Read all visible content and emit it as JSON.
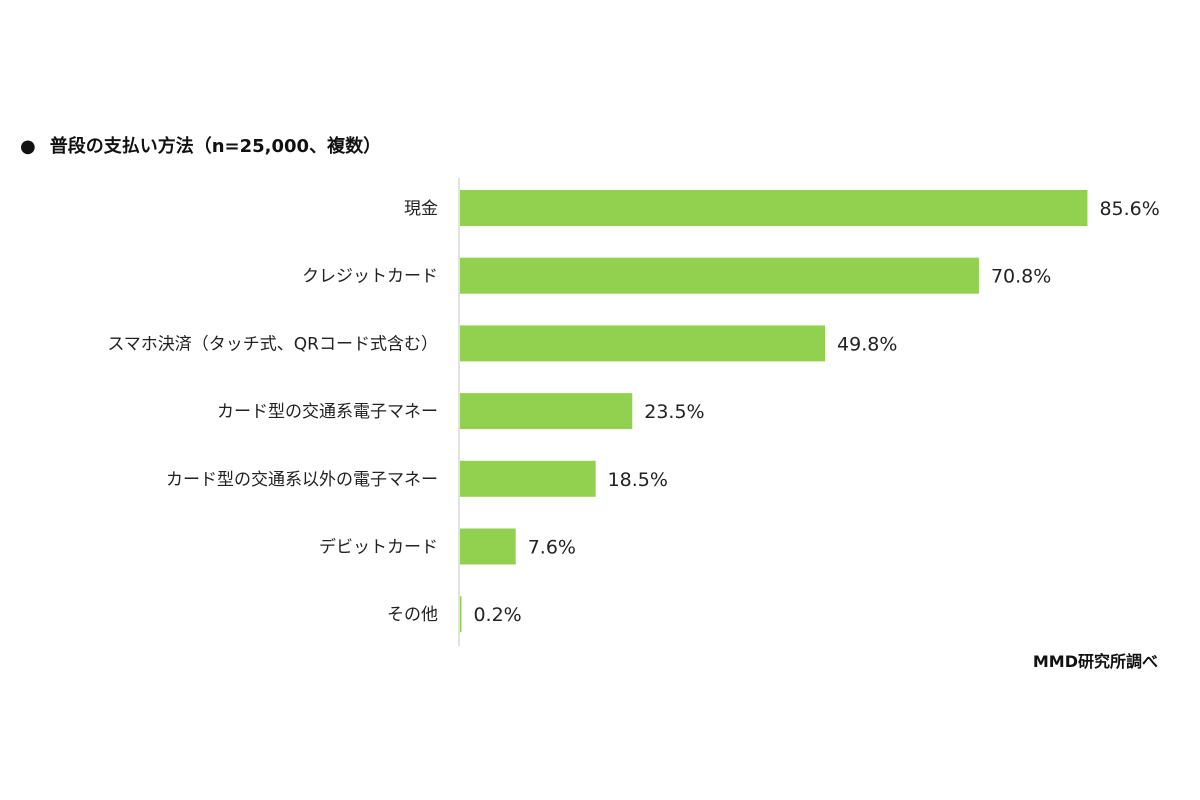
{
  "chart_data": {
    "type": "bar",
    "orientation": "horizontal",
    "title": "普段の支払い方法（n=25,000、複数）",
    "categories": [
      "現金",
      "クレジットカード",
      "スマホ決済（タッチ式、QRコード式含む）",
      "カード型の交通系電子マネー",
      "カード型の交通系以外の電子マネー",
      "デビットカード",
      "その他"
    ],
    "values": [
      85.6,
      70.8,
      49.8,
      23.5,
      18.5,
      7.6,
      0.2
    ],
    "value_labels": [
      "85.6%",
      "70.8%",
      "49.8%",
      "23.5%",
      "18.5%",
      "7.6%",
      "0.2%"
    ],
    "unit": "%",
    "xlim": [
      0,
      100
    ],
    "grid": false,
    "legend": "none",
    "bar_color": "#92d050",
    "source": "MMD研究所調べ"
  }
}
